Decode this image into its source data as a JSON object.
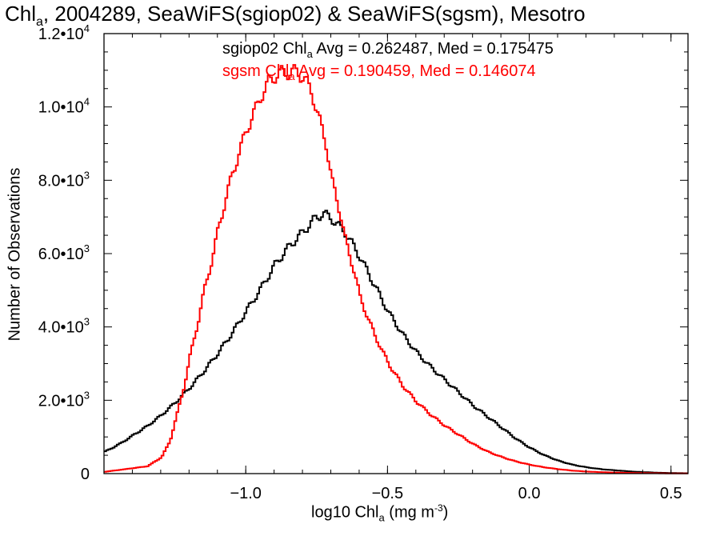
{
  "title": {
    "prefix": "Chl",
    "sub": "a",
    "rest": ", 2004289, SeaWiFS(sgiop02) & SeaWiFS(sgsm), Mesotro"
  },
  "stats": {
    "black": {
      "prefix": "sgiop02 Chl",
      "sub": "a",
      "rest": " Avg = 0.262487, Med = 0.175475",
      "color": "#000000"
    },
    "red": {
      "prefix": "sgsm Chl",
      "sub": "a",
      "rest": " Avg = 0.190459, Med = 0.146074",
      "color": "#ff0000"
    }
  },
  "chart_data": {
    "type": "line",
    "style": "histogram-step",
    "xlabel": {
      "prefix": "log10 Chl",
      "sub": "a",
      "unit_prefix": " (mg m",
      "unit_sup": "-3",
      "unit_suffix": ")"
    },
    "ylabel": "Number of Observations",
    "xlim": [
      -1.5,
      0.56
    ],
    "ylim": [
      0,
      12000
    ],
    "x_ticks": [
      {
        "value": -1.0,
        "label": "−1.0"
      },
      {
        "value": -0.5,
        "label": "−0.5"
      },
      {
        "value": 0.0,
        "label": "0.0"
      },
      {
        "value": 0.5,
        "label": "0.5"
      }
    ],
    "y_ticks": [
      {
        "value": 0,
        "label": "0",
        "exp": ""
      },
      {
        "value": 2000,
        "label": "2.0•10",
        "exp": "3"
      },
      {
        "value": 4000,
        "label": "4.0•10",
        "exp": "3"
      },
      {
        "value": 6000,
        "label": "6.0•10",
        "exp": "3"
      },
      {
        "value": 8000,
        "label": "8.0•10",
        "exp": "3"
      },
      {
        "value": 10000,
        "label": "1.0•10",
        "exp": "4"
      },
      {
        "value": 12000,
        "label": "1.2•10",
        "exp": "4"
      }
    ],
    "series": [
      {
        "color": "#000000",
        "points": [
          [
            -1.5,
            600
          ],
          [
            -1.45,
            800
          ],
          [
            -1.4,
            1050
          ],
          [
            -1.35,
            1300
          ],
          [
            -1.3,
            1600
          ],
          [
            -1.25,
            1950
          ],
          [
            -1.2,
            2350
          ],
          [
            -1.15,
            2800
          ],
          [
            -1.1,
            3300
          ],
          [
            -1.05,
            3850
          ],
          [
            -1.0,
            4450
          ],
          [
            -0.95,
            5050
          ],
          [
            -0.9,
            5700
          ],
          [
            -0.85,
            6200
          ],
          [
            -0.8,
            6600
          ],
          [
            -0.76,
            6950
          ],
          [
            -0.73,
            7100
          ],
          [
            -0.7,
            6950
          ],
          [
            -0.65,
            6550
          ],
          [
            -0.6,
            5900
          ],
          [
            -0.55,
            5150
          ],
          [
            -0.5,
            4400
          ],
          [
            -0.45,
            3800
          ],
          [
            -0.4,
            3300
          ],
          [
            -0.35,
            2900
          ],
          [
            -0.3,
            2550
          ],
          [
            -0.25,
            2200
          ],
          [
            -0.2,
            1850
          ],
          [
            -0.15,
            1550
          ],
          [
            -0.1,
            1250
          ],
          [
            -0.05,
            950
          ],
          [
            0.0,
            700
          ],
          [
            0.05,
            500
          ],
          [
            0.1,
            350
          ],
          [
            0.15,
            240
          ],
          [
            0.2,
            170
          ],
          [
            0.25,
            120
          ],
          [
            0.3,
            90
          ],
          [
            0.35,
            60
          ],
          [
            0.4,
            40
          ],
          [
            0.45,
            25
          ],
          [
            0.5,
            15
          ],
          [
            0.56,
            10
          ]
        ]
      },
      {
        "color": "#ff0000",
        "points": [
          [
            -1.5,
            50
          ],
          [
            -1.45,
            100
          ],
          [
            -1.4,
            150
          ],
          [
            -1.35,
            200
          ],
          [
            -1.3,
            450
          ],
          [
            -1.27,
            900
          ],
          [
            -1.25,
            1500
          ],
          [
            -1.22,
            2400
          ],
          [
            -1.2,
            3200
          ],
          [
            -1.17,
            4200
          ],
          [
            -1.15,
            5000
          ],
          [
            -1.12,
            5900
          ],
          [
            -1.1,
            6700
          ],
          [
            -1.07,
            7600
          ],
          [
            -1.05,
            8200
          ],
          [
            -1.02,
            8900
          ],
          [
            -1.0,
            9400
          ],
          [
            -0.97,
            9900
          ],
          [
            -0.95,
            10300
          ],
          [
            -0.92,
            10700
          ],
          [
            -0.9,
            10850
          ],
          [
            -0.87,
            10950
          ],
          [
            -0.85,
            10950
          ],
          [
            -0.82,
            10950
          ],
          [
            -0.8,
            10800
          ],
          [
            -0.77,
            10400
          ],
          [
            -0.75,
            9800
          ],
          [
            -0.72,
            9000
          ],
          [
            -0.7,
            8000
          ],
          [
            -0.67,
            7100
          ],
          [
            -0.65,
            6300
          ],
          [
            -0.62,
            5500
          ],
          [
            -0.6,
            4800
          ],
          [
            -0.55,
            3800
          ],
          [
            -0.5,
            3000
          ],
          [
            -0.45,
            2400
          ],
          [
            -0.4,
            1950
          ],
          [
            -0.35,
            1600
          ],
          [
            -0.3,
            1300
          ],
          [
            -0.25,
            1050
          ],
          [
            -0.2,
            800
          ],
          [
            -0.15,
            600
          ],
          [
            -0.1,
            450
          ],
          [
            -0.05,
            330
          ],
          [
            0.0,
            240
          ],
          [
            0.05,
            170
          ],
          [
            0.1,
            120
          ],
          [
            0.15,
            80
          ],
          [
            0.2,
            55
          ],
          [
            0.25,
            40
          ],
          [
            0.3,
            28
          ],
          [
            0.35,
            20
          ],
          [
            0.4,
            14
          ],
          [
            0.45,
            10
          ],
          [
            0.5,
            6
          ],
          [
            0.56,
            4
          ]
        ]
      }
    ]
  }
}
